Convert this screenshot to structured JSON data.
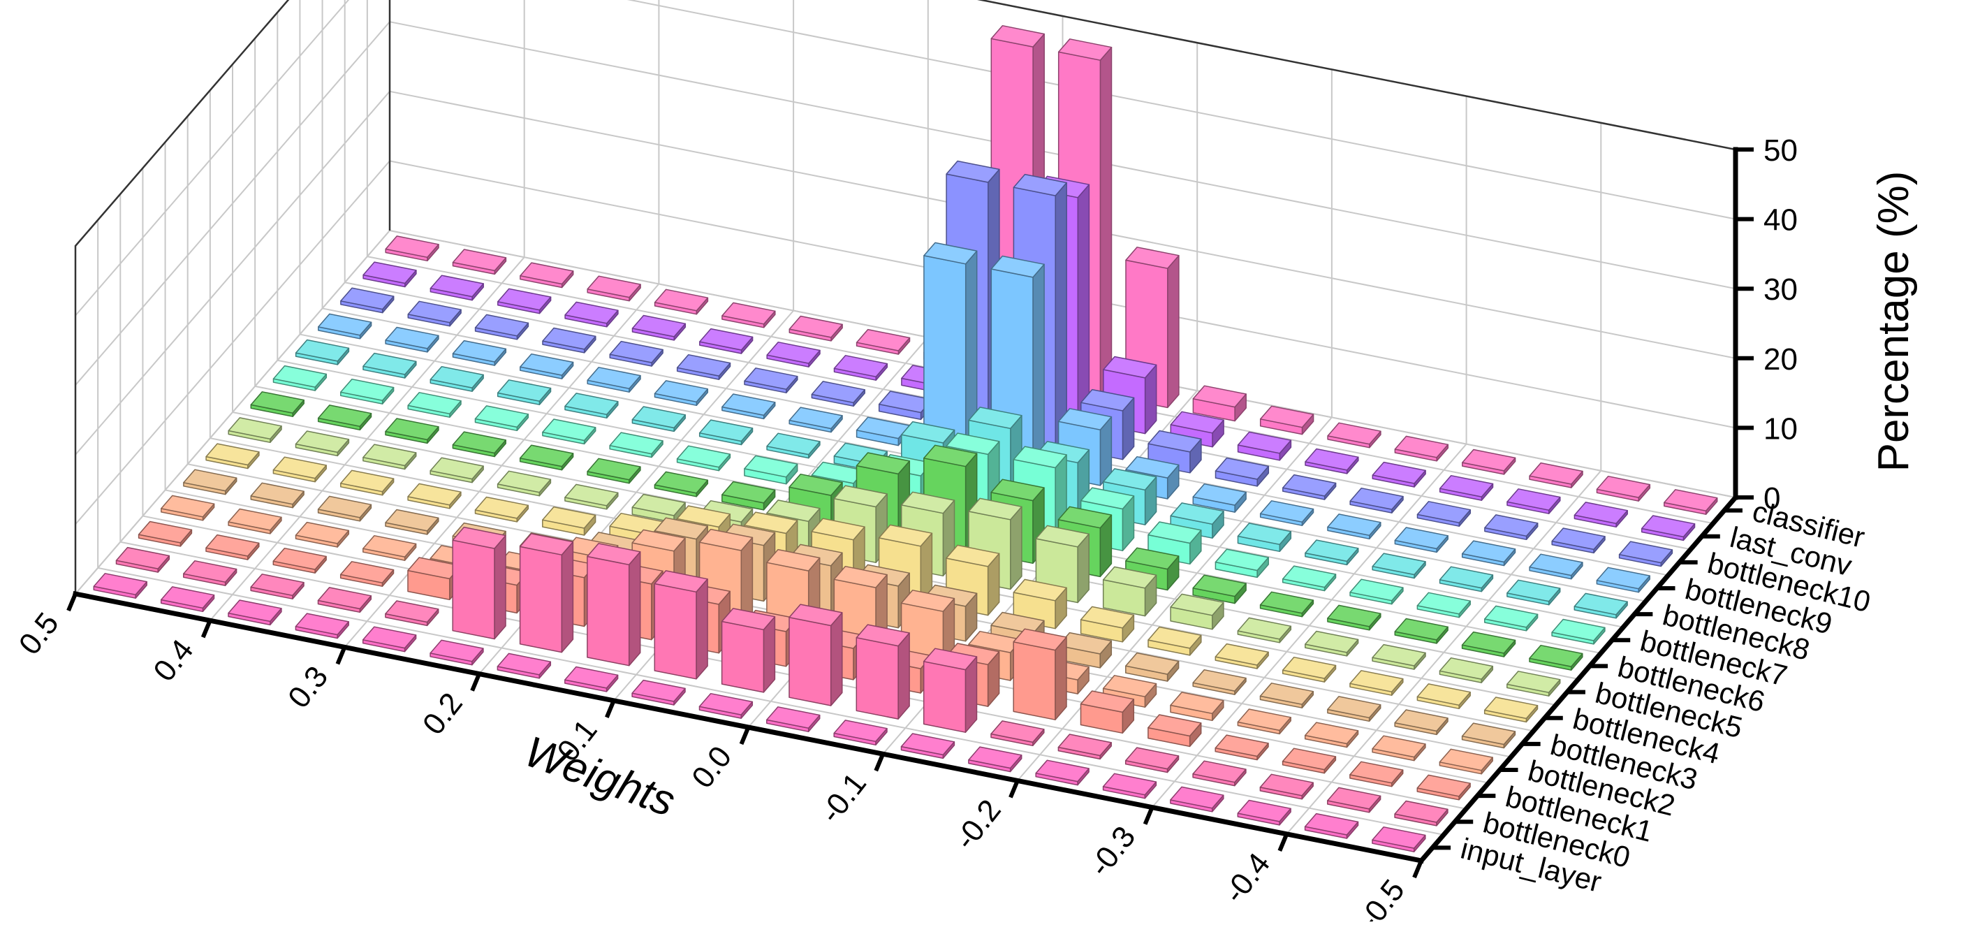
{
  "chart_data": {
    "type": "bar3d",
    "title": "",
    "xlabel": "Weights",
    "ylabel": "",
    "zlabel": "Percentage (%)",
    "weight_ticks": [
      "0.5",
      "0.4",
      "0.3",
      "0.2",
      "0.1",
      "0.0",
      "-0.1",
      "-0.2",
      "-0.3",
      "-0.4",
      "-0.5"
    ],
    "percentage_ticks": [
      "0",
      "10",
      "20",
      "30",
      "40",
      "50"
    ],
    "zlim": [
      0,
      50
    ],
    "grid": true,
    "weight_bins": [
      0.475,
      0.425,
      0.375,
      0.325,
      0.275,
      0.225,
      0.175,
      0.125,
      0.075,
      0.025,
      -0.025,
      -0.075,
      -0.125,
      -0.175,
      -0.225,
      -0.275,
      -0.325,
      -0.375,
      -0.425,
      -0.475
    ],
    "series": [
      {
        "name": "input_layer",
        "color": "#ff6ec7",
        "values": [
          0.5,
          0.5,
          0.5,
          0.5,
          0.5,
          0.5,
          0.5,
          0.5,
          0.5,
          0.5,
          0.5,
          0.5,
          0.5,
          0.5,
          0.5,
          0.5,
          0.5,
          0.5,
          0.5,
          0.5
        ]
      },
      {
        "name": "bottleneck0",
        "color": "#ff77b4",
        "values": [
          0.5,
          0.5,
          0.5,
          0.5,
          0.5,
          13,
          14,
          14.5,
          12.5,
          9,
          11.5,
          10.5,
          9,
          0.5,
          0.5,
          0.5,
          0.5,
          0.5,
          0.5,
          0.5
        ]
      },
      {
        "name": "bottleneck1",
        "color": "#ff9a8e",
        "values": [
          0.5,
          0.5,
          0.5,
          0.5,
          3,
          4,
          7,
          8,
          7,
          5,
          4.5,
          3.5,
          6,
          10,
          3,
          1.5,
          0.5,
          0.5,
          0.5,
          0.5
        ]
      },
      {
        "name": "bottleneck2",
        "color": "#ffb391",
        "values": [
          0.5,
          0.5,
          0.5,
          0.5,
          1,
          2,
          6,
          9,
          11,
          10,
          9.5,
          8,
          4,
          2,
          1.5,
          1,
          0.5,
          0.5,
          0.5,
          0.5
        ]
      },
      {
        "name": "bottleneck3",
        "color": "#eec08f",
        "values": [
          0.5,
          0.5,
          0.5,
          0.5,
          0.5,
          1,
          3,
          7,
          8,
          7,
          6,
          5,
          3,
          2,
          1,
          0.5,
          0.5,
          0.5,
          0.5,
          0.5
        ]
      },
      {
        "name": "bottleneck4",
        "color": "#f6e08f",
        "values": [
          0.5,
          0.5,
          0.5,
          0.5,
          0.5,
          1,
          2,
          5,
          6,
          7,
          8,
          7,
          4,
          2,
          1,
          0.5,
          0.5,
          0.5,
          0.5,
          0.5
        ]
      },
      {
        "name": "bottleneck5",
        "color": "#cbe89a",
        "values": [
          0.5,
          0.5,
          0.5,
          0.5,
          0.5,
          0.5,
          1,
          2,
          4,
          8,
          9,
          10,
          8,
          4,
          2,
          0.5,
          0.5,
          0.5,
          0.5,
          0.5
        ]
      },
      {
        "name": "bottleneck6",
        "color": "#66d45e",
        "values": [
          0.5,
          0.5,
          0.5,
          0.5,
          0.5,
          0.5,
          0.5,
          1,
          4,
          9,
          12,
          9,
          7,
          3,
          1,
          0.5,
          0.5,
          0.5,
          0.5,
          0.5
        ]
      },
      {
        "name": "bottleneck7",
        "color": "#77ffd6",
        "values": [
          0.5,
          0.5,
          0.5,
          0.5,
          0.5,
          0.5,
          0.5,
          1,
          2,
          5,
          10,
          10,
          6,
          3,
          1,
          0.5,
          0.5,
          0.5,
          0.5,
          0.5
        ]
      },
      {
        "name": "bottleneck8",
        "color": "#6fe6e6",
        "values": [
          0.5,
          0.5,
          0.5,
          0.5,
          0.5,
          0.5,
          0.5,
          0.5,
          1,
          6,
          10,
          7,
          5,
          2,
          1,
          0.5,
          0.5,
          0.5,
          0.5,
          0.5
        ]
      },
      {
        "name": "bottleneck9",
        "color": "#7cc6ff",
        "values": [
          0.5,
          0.5,
          0.5,
          0.5,
          0.5,
          0.5,
          0.5,
          0.5,
          1,
          28,
          28,
          8,
          3,
          1,
          0.5,
          0.5,
          0.5,
          0.5,
          0.5,
          0.5
        ]
      },
      {
        "name": "bottleneck10",
        "color": "#8b92ff",
        "values": [
          0.5,
          0.5,
          0.5,
          0.5,
          0.5,
          0.5,
          0.5,
          0.5,
          1,
          36,
          36,
          7,
          3,
          1,
          0.5,
          0.5,
          0.5,
          0.5,
          0.5,
          0.5
        ]
      },
      {
        "name": "last_conv",
        "color": "#c46bff",
        "values": [
          0.5,
          0.5,
          0.5,
          0.5,
          0.5,
          0.5,
          0.5,
          0.5,
          1,
          3,
          32,
          8,
          2,
          1,
          0.5,
          0.5,
          0.5,
          0.5,
          0.5,
          0.5
        ]
      },
      {
        "name": "classifier",
        "color": "#ff79c6",
        "values": [
          0.5,
          0.5,
          0.5,
          0.5,
          0.5,
          0.5,
          0.5,
          0.5,
          1,
          48,
          48,
          20,
          2,
          1,
          0.5,
          0.5,
          0.5,
          0.5,
          0.5,
          0.5
        ]
      }
    ]
  }
}
